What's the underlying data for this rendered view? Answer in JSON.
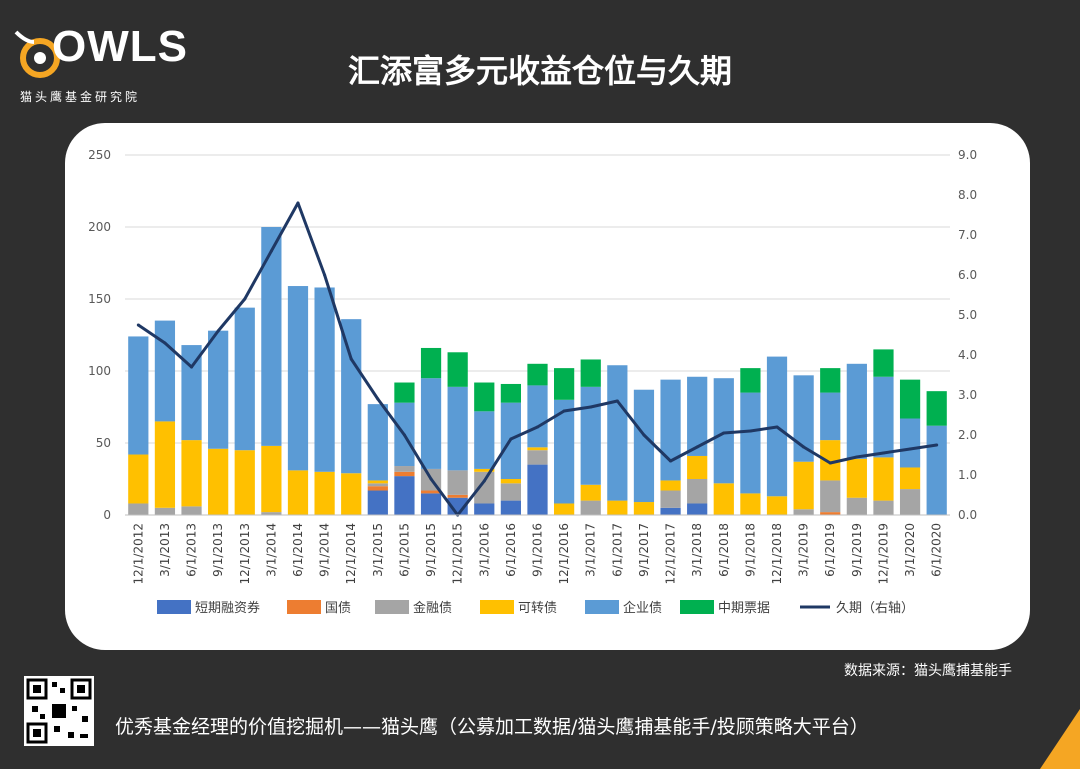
{
  "header": {
    "logo_text": "OWLS",
    "logo_subtitle": "猫头鹰基金研究院",
    "title": "汇添富多元收益仓位与久期"
  },
  "footer": {
    "source": "数据来源：猫头鹰捕基能手",
    "slogan": "优秀基金经理的价值挖掘机——猫头鹰（公募加工数据/猫头鹰捕基能手/投顾策略大平台）"
  },
  "colors": {
    "short_financing": "#4472c4",
    "gov_bond": "#ed7d31",
    "financial_bond": "#a5a5a5",
    "convertible": "#ffc000",
    "corporate": "#5b9bd5",
    "mtn": "#00b050",
    "duration": "#1f3864"
  },
  "chart_data": {
    "type": "bar",
    "stacked": true,
    "categories": [
      "12/1/2012",
      "3/1/2013",
      "6/1/2013",
      "9/1/2013",
      "12/1/2013",
      "3/1/2014",
      "6/1/2014",
      "9/1/2014",
      "12/1/2014",
      "3/1/2015",
      "6/1/2015",
      "9/1/2015",
      "12/1/2015",
      "3/1/2016",
      "6/1/2016",
      "9/1/2016",
      "12/1/2016",
      "3/1/2017",
      "6/1/2017",
      "9/1/2017",
      "12/1/2017",
      "3/1/2018",
      "6/1/2018",
      "9/1/2018",
      "12/1/2018",
      "3/1/2019",
      "6/1/2019",
      "9/1/2019",
      "12/1/2019",
      "3/1/2020",
      "6/1/2020"
    ],
    "series": [
      {
        "name": "短期融资券",
        "key": "short_financing",
        "values": [
          0,
          0,
          0,
          0,
          0,
          0,
          0,
          0,
          0,
          17,
          27,
          15,
          12,
          8,
          10,
          35,
          0,
          0,
          0,
          0,
          5,
          8,
          0,
          0,
          0,
          0,
          0,
          0,
          0,
          0,
          0
        ]
      },
      {
        "name": "国债",
        "key": "gov_bond",
        "values": [
          0,
          0,
          0,
          0,
          0,
          0,
          0,
          0,
          0,
          3,
          3,
          2,
          2,
          0,
          0,
          0,
          0,
          0,
          0,
          0,
          0,
          0,
          0,
          0,
          0,
          0,
          2,
          0,
          0,
          0,
          0
        ]
      },
      {
        "name": "金融债",
        "key": "financial_bond",
        "values": [
          8,
          5,
          6,
          0,
          0,
          2,
          0,
          0,
          0,
          2,
          4,
          15,
          17,
          22,
          12,
          10,
          0,
          10,
          0,
          0,
          12,
          17,
          0,
          0,
          0,
          4,
          22,
          12,
          10,
          18,
          0
        ]
      },
      {
        "name": "可转债",
        "key": "convertible",
        "values": [
          34,
          60,
          46,
          46,
          45,
          46,
          31,
          30,
          29,
          2,
          0,
          0,
          0,
          2,
          3,
          2,
          8,
          11,
          10,
          9,
          7,
          16,
          22,
          15,
          13,
          33,
          28,
          27,
          30,
          15,
          0
        ]
      },
      {
        "name": "企业债",
        "key": "corporate",
        "values": [
          82,
          70,
          66,
          82,
          99,
          152,
          128,
          128,
          107,
          53,
          44,
          63,
          58,
          40,
          53,
          43,
          72,
          68,
          94,
          78,
          70,
          55,
          73,
          70,
          97,
          60,
          33,
          66,
          56,
          34,
          62
        ]
      },
      {
        "name": "中期票据",
        "key": "mtn",
        "values": [
          0,
          0,
          0,
          0,
          0,
          0,
          0,
          0,
          0,
          0,
          14,
          21,
          24,
          20,
          13,
          15,
          22,
          19,
          0,
          0,
          0,
          0,
          0,
          17,
          0,
          0,
          17,
          0,
          19,
          27,
          24
        ]
      }
    ],
    "line": {
      "name": "久期（右轴）",
      "values": [
        4.75,
        4.3,
        3.7,
        4.6,
        5.4,
        6.6,
        7.8,
        6.0,
        3.9,
        2.9,
        2.0,
        0.9,
        0.0,
        0.85,
        1.9,
        2.2,
        2.6,
        2.7,
        2.85,
        2.0,
        1.35,
        1.7,
        2.05,
        2.1,
        2.2,
        1.7,
        1.3,
        1.45,
        1.55,
        1.65,
        1.75
      ]
    },
    "y_left": {
      "min": 0,
      "max": 250,
      "ticks": [
        "0",
        "50",
        "100",
        "150",
        "200",
        "250"
      ]
    },
    "y_right": {
      "min": 0,
      "max": 9,
      "ticks": [
        "0.0",
        "1.0",
        "2.0",
        "3.0",
        "4.0",
        "5.0",
        "6.0",
        "7.0",
        "8.0",
        "9.0"
      ]
    },
    "legend": [
      "短期融资券",
      "国债",
      "金融债",
      "可转债",
      "企业债",
      "中期票据",
      "久期（右轴）"
    ],
    "grid": true,
    "legend_position": "bottom"
  }
}
